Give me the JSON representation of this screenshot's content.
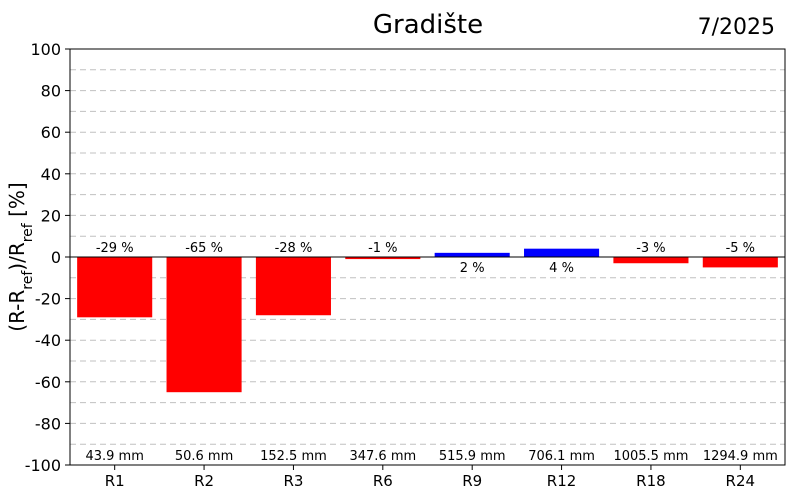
{
  "chart_data": {
    "type": "bar",
    "title": "Gradište",
    "period": "7/2025",
    "ylabel": {
      "base": "(R-R",
      "sub1": "ref",
      "mid": ")/R",
      "sub2": "ref",
      "end": " [%]"
    },
    "categories": [
      "R1",
      "R2",
      "R3",
      "R6",
      "R9",
      "R12",
      "R18",
      "R24"
    ],
    "values": [
      -29,
      -65,
      -28,
      -1,
      2,
      4,
      -3,
      -5
    ],
    "value_labels": [
      "-29 %",
      "-65 %",
      "-28 %",
      "-1 %",
      "2 %",
      "4 %",
      "-3 %",
      "-5 %"
    ],
    "rainfall_labels": [
      "43.9 mm",
      "50.6 mm",
      "152.5 mm",
      "347.6 mm",
      "515.9 mm",
      "706.1 mm",
      "1005.5 mm",
      "1294.9 mm"
    ],
    "ylim": [
      -100,
      100
    ],
    "yticks": [
      -100,
      -80,
      -60,
      -40,
      -20,
      0,
      20,
      40,
      60,
      80,
      100
    ],
    "grid": true,
    "colors": {
      "negative": "#ff0000",
      "positive": "#0000ff",
      "grid": "#c0c0c0",
      "axis": "#000000"
    }
  }
}
